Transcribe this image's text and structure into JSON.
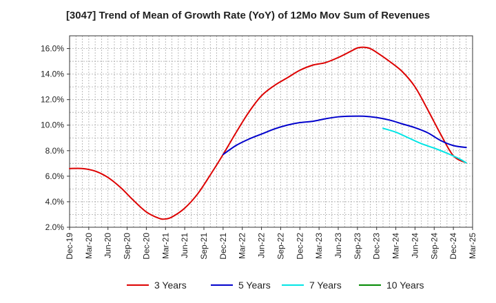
{
  "chart_data": {
    "type": "line",
    "title": "[3047]  Trend of Mean of Growth Rate (YoY) of 12Mo Mov Sum of Revenues",
    "xlabel": "",
    "ylabel": "",
    "ylim": [
      2.0,
      17.0
    ],
    "yticks": [
      "2.0%",
      "4.0%",
      "6.0%",
      "8.0%",
      "10.0%",
      "12.0%",
      "14.0%",
      "16.0%"
    ],
    "ytick_values": [
      2,
      4,
      6,
      8,
      10,
      12,
      14,
      16
    ],
    "x_tick_labels": [
      "Dec-19",
      "Mar-20",
      "Jun-20",
      "Sep-20",
      "Dec-20",
      "Mar-21",
      "Jun-21",
      "Sep-21",
      "Dec-21",
      "Mar-22",
      "Jun-22",
      "Sep-22",
      "Dec-22",
      "Mar-23",
      "Jun-23",
      "Sep-23",
      "Dec-23",
      "Mar-24",
      "Jun-24",
      "Sep-24",
      "Dec-24",
      "Mar-25"
    ],
    "x_tick_months": [
      0,
      3,
      6,
      9,
      12,
      15,
      18,
      21,
      24,
      27,
      30,
      33,
      36,
      39,
      42,
      45,
      48,
      51,
      54,
      57,
      60,
      63
    ],
    "xlim_months": [
      0,
      63
    ],
    "grid": true,
    "legend_position": "bottom",
    "series": [
      {
        "name": "3 Years",
        "color": "#dd0000",
        "points": [
          [
            0,
            6.6
          ],
          [
            2,
            6.6
          ],
          [
            4,
            6.4
          ],
          [
            6,
            5.9
          ],
          [
            8,
            5.1
          ],
          [
            10,
            4.1
          ],
          [
            12,
            3.2
          ],
          [
            14,
            2.7
          ],
          [
            15,
            2.65
          ],
          [
            16,
            2.8
          ],
          [
            18,
            3.5
          ],
          [
            20,
            4.6
          ],
          [
            22,
            6.1
          ],
          [
            24,
            7.7
          ],
          [
            26,
            9.4
          ],
          [
            28,
            11.0
          ],
          [
            30,
            12.3
          ],
          [
            32,
            13.1
          ],
          [
            34,
            13.7
          ],
          [
            36,
            14.3
          ],
          [
            38,
            14.7
          ],
          [
            40,
            14.9
          ],
          [
            42,
            15.3
          ],
          [
            44,
            15.8
          ],
          [
            45,
            16.05
          ],
          [
            46,
            16.1
          ],
          [
            47,
            16.0
          ],
          [
            48,
            15.7
          ],
          [
            50,
            15.0
          ],
          [
            52,
            14.2
          ],
          [
            54,
            13.0
          ],
          [
            56,
            11.2
          ],
          [
            58,
            9.3
          ],
          [
            60,
            7.6
          ],
          [
            62,
            7.05
          ]
        ]
      },
      {
        "name": "5 Years",
        "color": "#0000cc",
        "points": [
          [
            24,
            7.7
          ],
          [
            26,
            8.4
          ],
          [
            28,
            8.9
          ],
          [
            30,
            9.3
          ],
          [
            32,
            9.7
          ],
          [
            34,
            10.0
          ],
          [
            36,
            10.2
          ],
          [
            38,
            10.3
          ],
          [
            40,
            10.5
          ],
          [
            42,
            10.65
          ],
          [
            44,
            10.7
          ],
          [
            46,
            10.7
          ],
          [
            48,
            10.6
          ],
          [
            50,
            10.4
          ],
          [
            52,
            10.1
          ],
          [
            54,
            9.8
          ],
          [
            56,
            9.4
          ],
          [
            58,
            8.8
          ],
          [
            60,
            8.4
          ],
          [
            62,
            8.25
          ]
        ]
      },
      {
        "name": "7 Years",
        "color": "#00e5e5",
        "points": [
          [
            49,
            9.75
          ],
          [
            51,
            9.45
          ],
          [
            53,
            9.0
          ],
          [
            55,
            8.55
          ],
          [
            57,
            8.2
          ],
          [
            59,
            7.8
          ],
          [
            61,
            7.35
          ],
          [
            62,
            7.05
          ]
        ]
      },
      {
        "name": "10 Years",
        "color": "#008800",
        "points": []
      }
    ]
  }
}
